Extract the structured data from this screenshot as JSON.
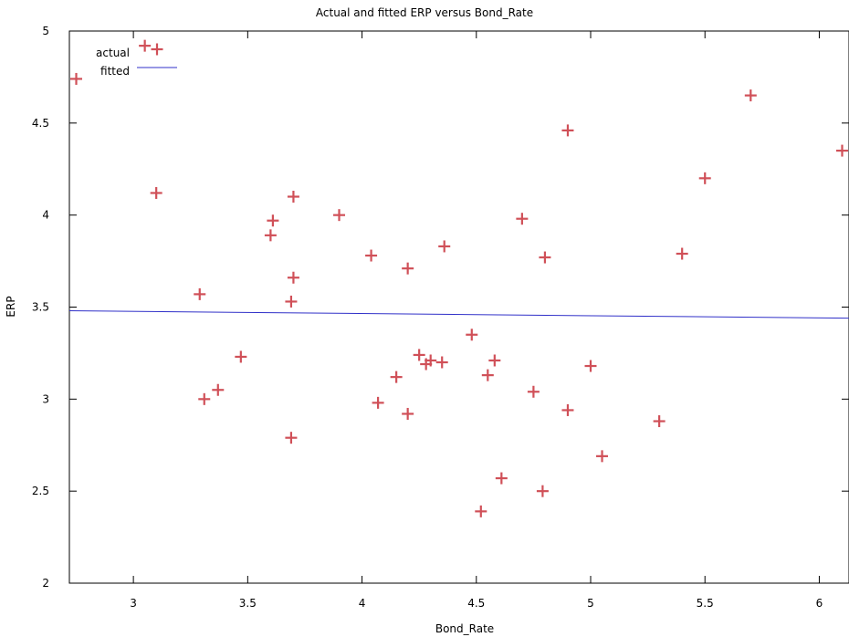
{
  "chart_data": {
    "type": "scatter",
    "title": "Actual and fitted ERP versus Bond_Rate",
    "xlabel": "Bond_Rate",
    "ylabel": "ERP",
    "xlim": [
      2.72,
      6.13
    ],
    "ylim": [
      2,
      5
    ],
    "xticks": [
      "3",
      "3.5",
      "4",
      "4.5",
      "5",
      "5.5",
      "6"
    ],
    "yticks": [
      "2",
      "2.5",
      "3",
      "3.5",
      "4",
      "4.5",
      "5"
    ],
    "legend_position": "top-left",
    "colors": {
      "actual": "#d05058",
      "fitted": "#3030c8"
    },
    "series": [
      {
        "name": "actual",
        "kind": "points",
        "points": [
          [
            2.75,
            4.74
          ],
          [
            3.05,
            4.92
          ],
          [
            3.1,
            4.12
          ],
          [
            3.29,
            3.57
          ],
          [
            3.31,
            3.0
          ],
          [
            3.37,
            3.05
          ],
          [
            3.47,
            3.23
          ],
          [
            3.6,
            3.89
          ],
          [
            3.61,
            3.97
          ],
          [
            3.69,
            3.53
          ],
          [
            3.7,
            3.66
          ],
          [
            3.7,
            4.1
          ],
          [
            3.69,
            2.79
          ],
          [
            3.9,
            4.0
          ],
          [
            4.04,
            3.78
          ],
          [
            4.07,
            2.98
          ],
          [
            4.15,
            3.12
          ],
          [
            4.2,
            3.71
          ],
          [
            4.2,
            2.92
          ],
          [
            4.25,
            3.24
          ],
          [
            4.28,
            3.19
          ],
          [
            4.3,
            3.21
          ],
          [
            4.35,
            3.2
          ],
          [
            4.36,
            3.83
          ],
          [
            4.48,
            3.35
          ],
          [
            4.52,
            2.39
          ],
          [
            4.55,
            3.13
          ],
          [
            4.58,
            3.21
          ],
          [
            4.61,
            2.57
          ],
          [
            4.7,
            3.98
          ],
          [
            4.75,
            3.04
          ],
          [
            4.79,
            2.5
          ],
          [
            4.8,
            3.77
          ],
          [
            4.9,
            4.46
          ],
          [
            4.9,
            2.94
          ],
          [
            5.0,
            3.18
          ],
          [
            5.05,
            2.69
          ],
          [
            5.3,
            2.88
          ],
          [
            5.4,
            3.79
          ],
          [
            5.5,
            4.2
          ],
          [
            5.7,
            4.65
          ],
          [
            6.1,
            4.35
          ]
        ]
      },
      {
        "name": "fitted",
        "kind": "line",
        "points": [
          [
            2.72,
            3.48
          ],
          [
            6.13,
            3.44
          ]
        ]
      }
    ]
  }
}
